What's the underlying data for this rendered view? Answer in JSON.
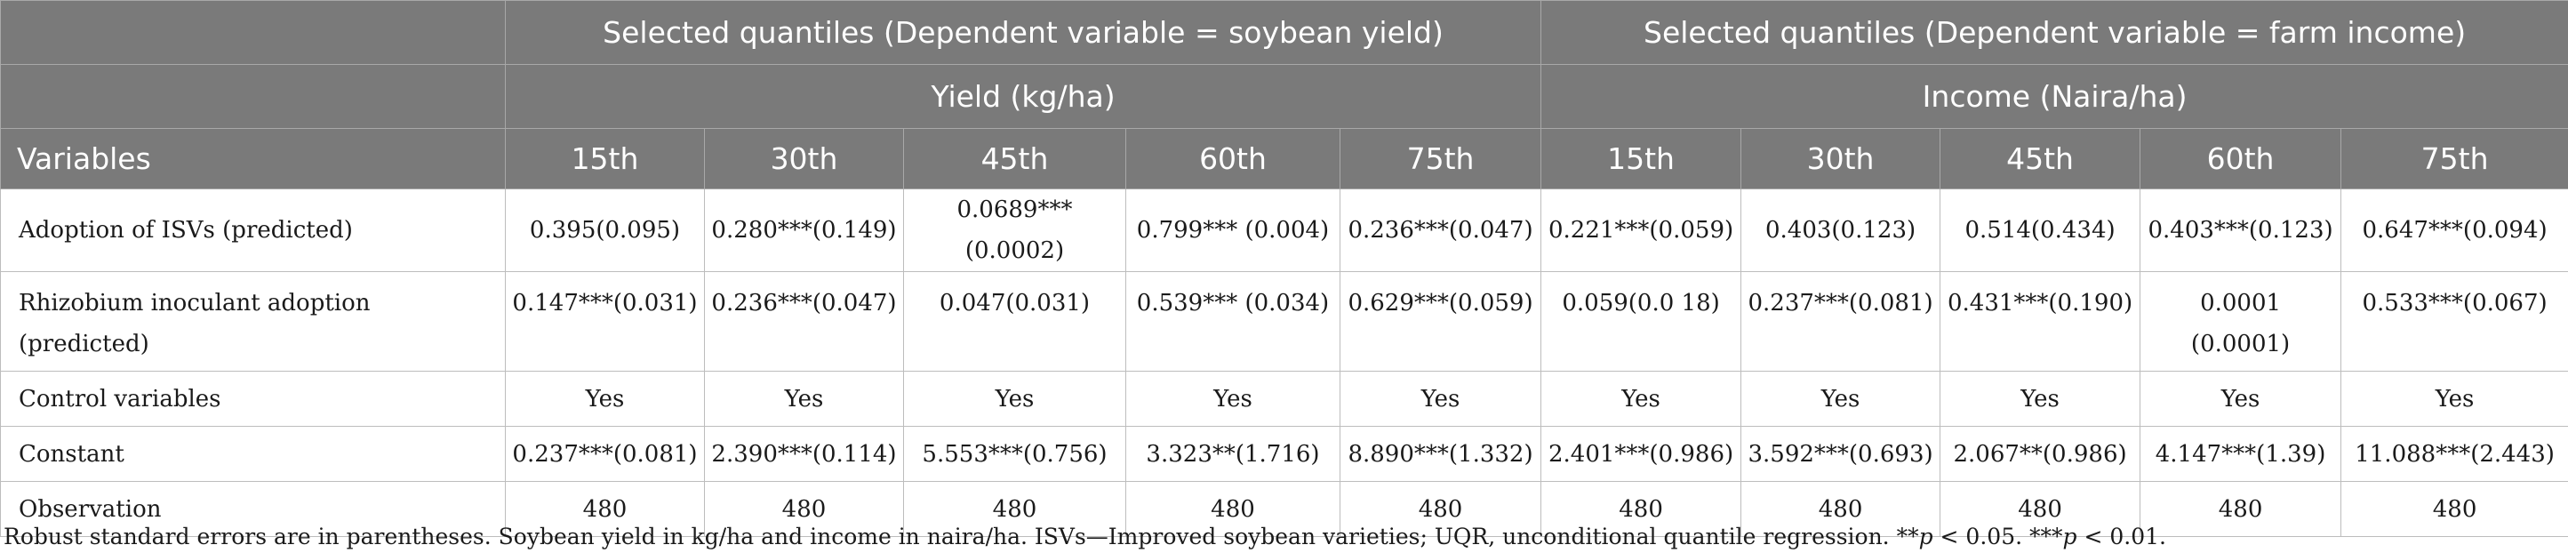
{
  "table": {
    "group_headers": [
      "Selected quantiles (Dependent variable = soybean yield)",
      "Selected quantiles (Dependent variable = farm income)"
    ],
    "sub_headers": [
      "Yield (kg/ha)",
      "Income (Naira/ha)"
    ],
    "variables_label": "Variables",
    "quantiles": [
      "15th",
      "30th",
      "45th",
      "60th",
      "75th",
      "15th",
      "30th",
      "45th",
      "60th",
      "75th"
    ],
    "rows": [
      {
        "label": "Adoption of ISVs (predicted)",
        "cells": [
          "0.395(0.095)",
          "0.280***(0.149)",
          "0.0689***(0.0002)",
          "0.799*** (0.004)",
          "0.236***(0.047)",
          "0.221***(0.059)",
          "0.403(0.123)",
          "0.514(0.434)",
          "0.403***(0.123)",
          "0.647***(0.094)"
        ]
      },
      {
        "label": "Rhizobium inoculant adoption (predicted)",
        "cells": [
          "0.147***(0.031)",
          "0.236***(0.047)",
          "0.047(0.031)",
          "0.539*** (0.034)",
          "0.629***(0.059)",
          "0.059(0.0 18)",
          "0.237***(0.081)",
          "0.431***(0.190)",
          "0.0001 (0.0001)",
          "0.533***(0.067)"
        ]
      },
      {
        "label": "Control variables",
        "cells": [
          "Yes",
          "Yes",
          "Yes",
          "Yes",
          "Yes",
          "Yes",
          "Yes",
          "Yes",
          "Yes",
          "Yes"
        ]
      },
      {
        "label": "Constant",
        "cells": [
          "0.237***(0.081)",
          "2.390***(0.114)",
          "5.553***(0.756)",
          "3.323**(1.716)",
          "8.890***(1.332)",
          "2.401***(0.986)",
          "3.592***(0.693)",
          "2.067**(0.986)",
          "4.147***(1.39)",
          "11.088***(2.443)"
        ]
      },
      {
        "label": "Observation",
        "cells": [
          "480",
          "480",
          "480",
          "480",
          "480",
          "480",
          "480",
          "480",
          "480",
          "480"
        ]
      }
    ]
  },
  "note": {
    "text": "Robust standard errors are in parentheses. Soybean yield in kg/ha and income in naira/ha. ISVs—Improved soybean varieties; UQR, unconditional quantile regression. **",
    "p1": "p",
    "mid": " < 0.05. ***",
    "p2": "p",
    "end": " < 0.01."
  }
}
